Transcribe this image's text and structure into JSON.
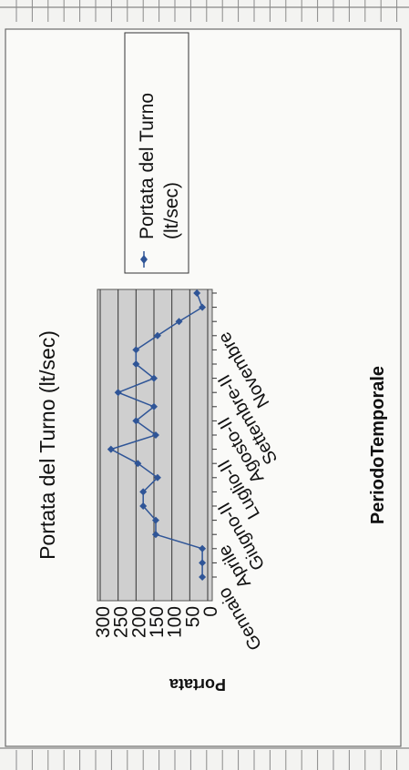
{
  "chart_data": {
    "type": "line",
    "title": "Portata del Turno (lt/sec)",
    "xlabel": "PeriodoTemporale",
    "ylabel": "Portata",
    "ylim": [
      0,
      300
    ],
    "y_ticks": [
      "0",
      "50",
      "100",
      "150",
      "200",
      "250",
      "300"
    ],
    "x_tick_labels": [
      "Gennaio",
      "Aprile",
      "Giugno-II",
      "Luglio-II",
      "Agosto-II",
      "Settembre-II",
      "Novembre"
    ],
    "legend_position": "right",
    "grid": true,
    "series": [
      {
        "name": "Portata del Turno (lt/sec)",
        "color": "#2f5597",
        "values": [
          15,
          15,
          15,
          145,
          145,
          180,
          180,
          140,
          195,
          270,
          145,
          200,
          150,
          250,
          150,
          200,
          200,
          140,
          80,
          15,
          30
        ]
      }
    ]
  }
}
